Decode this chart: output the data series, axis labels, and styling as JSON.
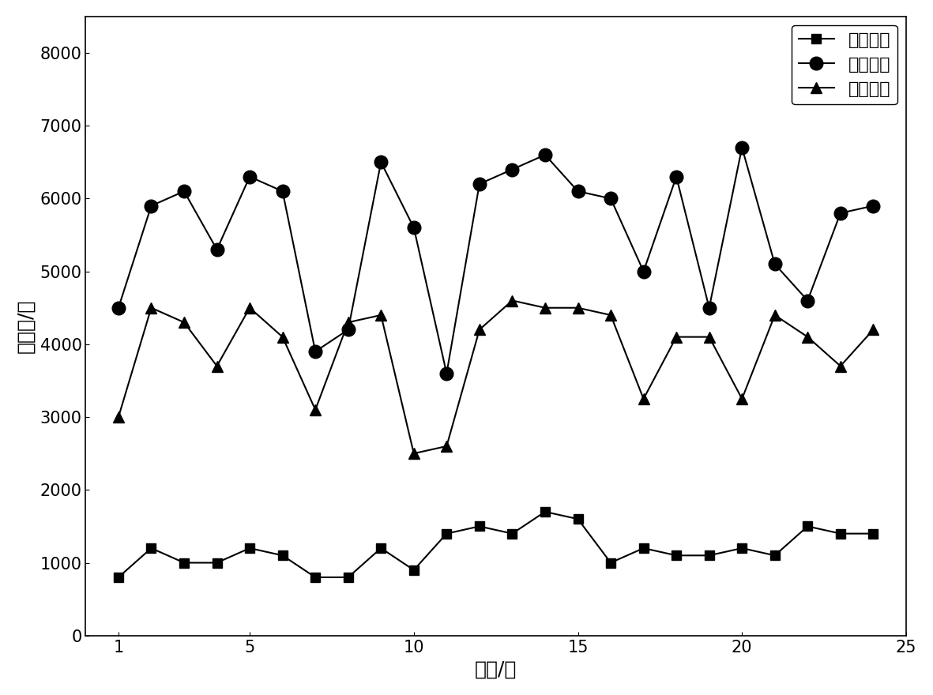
{
  "x": [
    1,
    2,
    3,
    4,
    5,
    6,
    7,
    8,
    9,
    10,
    11,
    12,
    13,
    14,
    15,
    16,
    17,
    18,
    19,
    20,
    21,
    22,
    23,
    24
  ],
  "lane1": [
    800,
    1200,
    1000,
    1000,
    1200,
    1100,
    800,
    800,
    1200,
    900,
    1400,
    1500,
    1400,
    1700,
    1600,
    1000,
    1200,
    1100,
    1100,
    1200,
    1100,
    1500,
    1400,
    1400
  ],
  "lane2": [
    4500,
    5900,
    6100,
    5300,
    6300,
    6100,
    3900,
    4200,
    6500,
    5600,
    3600,
    6200,
    6400,
    6600,
    6100,
    6000,
    5000,
    6300,
    4500,
    6700,
    5100,
    4600,
    5800,
    5900
  ],
  "lane3": [
    3000,
    4500,
    4300,
    3700,
    4500,
    4100,
    3100,
    4300,
    4400,
    2500,
    2600,
    4200,
    4600,
    4500,
    4500,
    4400,
    3250,
    4100,
    4100,
    3250,
    4400,
    4100,
    3700,
    4200
  ],
  "xlabel": "时间/天",
  "ylabel": "车流量/辆",
  "legend1": "第一车道",
  "legend2": "第二车道",
  "legend3": "第三车道",
  "xlim": [
    0,
    25
  ],
  "ylim": [
    0,
    8500
  ],
  "yticks": [
    0,
    1000,
    2000,
    3000,
    4000,
    5000,
    6000,
    7000,
    8000
  ],
  "xticks": [
    1,
    5,
    10,
    15,
    20,
    25
  ],
  "color": "#000000",
  "background_color": "#ffffff",
  "linewidth": 1.5,
  "markersize_square": 9,
  "markersize_circle": 12,
  "markersize_triangle": 10
}
